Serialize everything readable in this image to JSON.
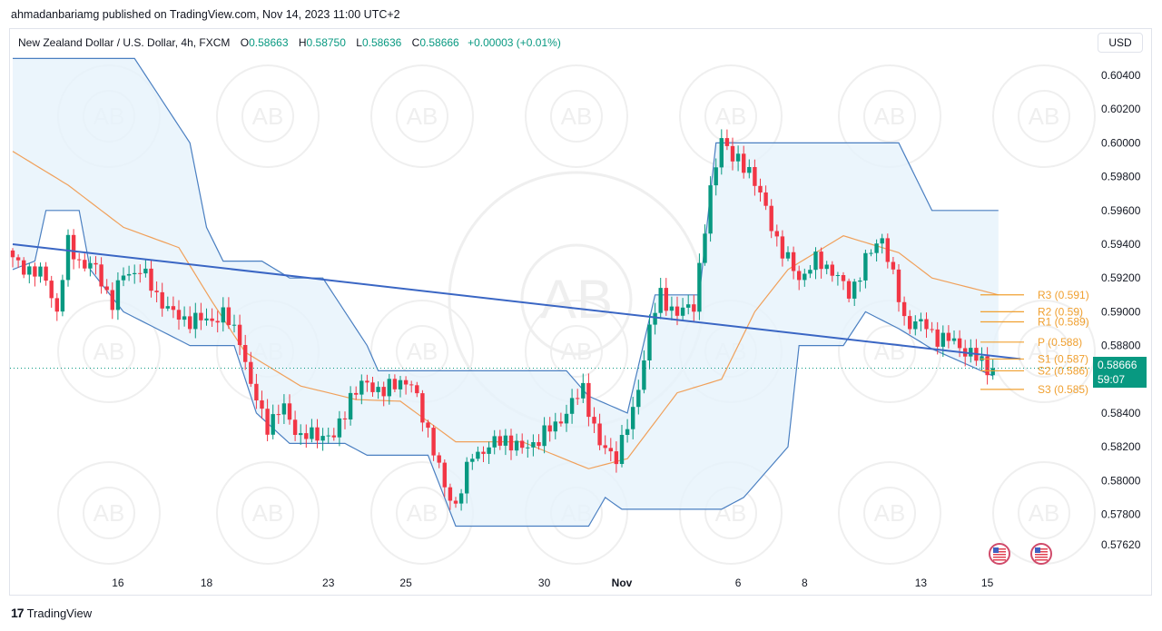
{
  "publisher_line": "ahmadanbariamg published on TradingView.com, Nov 14, 2023 11:00 UTC+2",
  "legend": {
    "symbol": "New Zealand Dollar / U.S. Dollar, 4h, FXCM",
    "o_label": "O",
    "o_value": "0.58663",
    "h_label": "H",
    "h_value": "0.58750",
    "l_label": "L",
    "l_value": "0.58636",
    "c_label": "C",
    "c_value": "0.58666",
    "change": "+0.00003 (+0.01%)"
  },
  "currency": "USD",
  "last_price": {
    "value": "0.58666",
    "countdown": "59:07"
  },
  "brand": "TradingView",
  "watermark_text": "AB",
  "colors": {
    "up": "#089981",
    "down": "#f23645",
    "channel": "#4a7fc1",
    "channel_fill": "#e6f2fb",
    "midline": "#f0a05a",
    "trendline": "#3a66c4",
    "pivot": "#f0a030"
  },
  "chart_data": {
    "type": "candlestick",
    "ylim": [
      0.5752,
      0.6054
    ],
    "yticks": [
      "0.60400",
      "0.60200",
      "0.60000",
      "0.59800",
      "0.59600",
      "0.59400",
      "0.59200",
      "0.59000",
      "0.58800",
      "0.58600",
      "0.58400",
      "0.58200",
      "0.58000",
      "0.57800",
      "0.57620"
    ],
    "x_labels": [
      {
        "label": "16",
        "index": 19
      },
      {
        "label": "18",
        "index": 35
      },
      {
        "label": "23",
        "index": 57
      },
      {
        "label": "25",
        "index": 71
      },
      {
        "label": "30",
        "index": 96
      },
      {
        "label": "Nov",
        "index": 110
      },
      {
        "label": "6",
        "index": 131
      },
      {
        "label": "8",
        "index": 143
      },
      {
        "label": "13",
        "index": 164
      },
      {
        "label": "15",
        "index": 176
      }
    ],
    "n_bars": 178,
    "closes_key": [
      [
        0,
        0.593
      ],
      [
        3,
        0.5925
      ],
      [
        6,
        0.592
      ],
      [
        8,
        0.59
      ],
      [
        10,
        0.594
      ],
      [
        12,
        0.593
      ],
      [
        15,
        0.5925
      ],
      [
        18,
        0.5905
      ],
      [
        20,
        0.5922
      ],
      [
        23,
        0.5925
      ],
      [
        26,
        0.591
      ],
      [
        29,
        0.5898
      ],
      [
        32,
        0.5895
      ],
      [
        35,
        0.5895
      ],
      [
        38,
        0.5898
      ],
      [
        41,
        0.5885
      ],
      [
        43,
        0.5855
      ],
      [
        46,
        0.5833
      ],
      [
        49,
        0.5843
      ],
      [
        52,
        0.5825
      ],
      [
        55,
        0.5828
      ],
      [
        58,
        0.5825
      ],
      [
        61,
        0.585
      ],
      [
        64,
        0.5858
      ],
      [
        67,
        0.5852
      ],
      [
        70,
        0.586
      ],
      [
        72,
        0.5856
      ],
      [
        75,
        0.583
      ],
      [
        78,
        0.5795
      ],
      [
        80,
        0.5786
      ],
      [
        83,
        0.5815
      ],
      [
        86,
        0.582
      ],
      [
        89,
        0.5825
      ],
      [
        92,
        0.5818
      ],
      [
        95,
        0.5825
      ],
      [
        98,
        0.5833
      ],
      [
        101,
        0.5845
      ],
      [
        103,
        0.5855
      ],
      [
        106,
        0.582
      ],
      [
        109,
        0.5815
      ],
      [
        112,
        0.584
      ],
      [
        115,
        0.589
      ],
      [
        117,
        0.591
      ],
      [
        120,
        0.5898
      ],
      [
        123,
        0.5905
      ],
      [
        126,
        0.597
      ],
      [
        128,
        0.6005
      ],
      [
        130,
        0.599
      ],
      [
        133,
        0.5985
      ],
      [
        136,
        0.596
      ],
      [
        139,
        0.5935
      ],
      [
        142,
        0.592
      ],
      [
        145,
        0.593
      ],
      [
        148,
        0.5925
      ],
      [
        151,
        0.591
      ],
      [
        154,
        0.593
      ],
      [
        157,
        0.5945
      ],
      [
        159,
        0.592
      ],
      [
        161,
        0.5895
      ],
      [
        164,
        0.5893
      ],
      [
        167,
        0.5885
      ],
      [
        170,
        0.5882
      ],
      [
        173,
        0.5875
      ],
      [
        176,
        0.5867
      ]
    ],
    "channel_upper_key": [
      [
        0,
        0.605
      ],
      [
        22,
        0.605
      ],
      [
        32,
        0.6
      ],
      [
        35,
        0.595
      ],
      [
        38,
        0.593
      ],
      [
        45,
        0.593
      ],
      [
        50,
        0.592
      ],
      [
        56,
        0.592
      ],
      [
        64,
        0.588
      ],
      [
        66,
        0.5865
      ],
      [
        100,
        0.5865
      ],
      [
        104,
        0.585
      ],
      [
        111,
        0.584
      ],
      [
        116,
        0.591
      ],
      [
        124,
        0.591
      ],
      [
        127,
        0.6
      ],
      [
        160,
        0.6
      ],
      [
        166,
        0.596
      ],
      [
        182,
        0.596
      ]
    ],
    "channel_lower_key": [
      [
        0,
        0.5925
      ],
      [
        4,
        0.593
      ],
      [
        6,
        0.596
      ],
      [
        12,
        0.596
      ],
      [
        14,
        0.5925
      ],
      [
        20,
        0.59
      ],
      [
        32,
        0.588
      ],
      [
        40,
        0.588
      ],
      [
        44,
        0.584
      ],
      [
        50,
        0.5822
      ],
      [
        60,
        0.5822
      ],
      [
        64,
        0.5815
      ],
      [
        75,
        0.5815
      ],
      [
        80,
        0.5773
      ],
      [
        104,
        0.5773
      ],
      [
        107,
        0.579
      ],
      [
        110,
        0.5783
      ],
      [
        128,
        0.5783
      ],
      [
        132,
        0.579
      ],
      [
        140,
        0.582
      ],
      [
        142,
        0.588
      ],
      [
        150,
        0.588
      ],
      [
        154,
        0.59
      ],
      [
        160,
        0.589
      ],
      [
        166,
        0.5878
      ],
      [
        177,
        0.5862
      ]
    ],
    "channel_mid_key": [
      [
        0,
        0.5995
      ],
      [
        10,
        0.5975
      ],
      [
        20,
        0.595
      ],
      [
        30,
        0.5938
      ],
      [
        36,
        0.5906
      ],
      [
        42,
        0.5876
      ],
      [
        52,
        0.5856
      ],
      [
        62,
        0.5848
      ],
      [
        70,
        0.5847
      ],
      [
        80,
        0.5823
      ],
      [
        92,
        0.5823
      ],
      [
        104,
        0.5807
      ],
      [
        111,
        0.5813
      ],
      [
        120,
        0.5852
      ],
      [
        128,
        0.586
      ],
      [
        134,
        0.59
      ],
      [
        140,
        0.5925
      ],
      [
        150,
        0.5945
      ],
      [
        160,
        0.5935
      ],
      [
        166,
        0.592
      ],
      [
        178,
        0.591
      ]
    ],
    "trendline": {
      "start": {
        "index": 0,
        "price": 0.594
      },
      "end": {
        "index": 182,
        "price": 0.5872
      }
    },
    "pivots": [
      {
        "label": "R3 (0.591)",
        "price": 0.591
      },
      {
        "label": "R2 (0.59)",
        "price": 0.59
      },
      {
        "label": "R1 (0.589)",
        "price": 0.5894
      },
      {
        "label": "P (0.588)",
        "price": 0.5882
      },
      {
        "label": "S1 (0.587)",
        "price": 0.5872
      },
      {
        "label": "S2 (0.586)",
        "price": 0.5865
      },
      {
        "label": "S3 (0.585)",
        "price": 0.5854
      }
    ],
    "last_price": 0.58666
  }
}
